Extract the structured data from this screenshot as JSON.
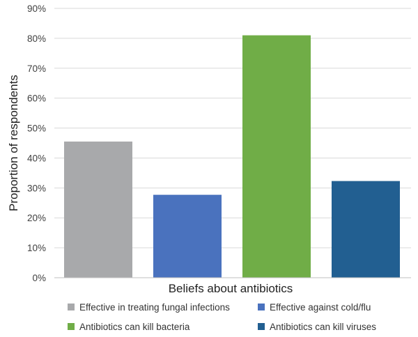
{
  "chart_data": {
    "type": "bar",
    "title": "",
    "xlabel": "Beliefs about antibiotics",
    "ylabel": "Proportion of respondents",
    "ylim": [
      0,
      90
    ],
    "yticks": [
      "0%",
      "10%",
      "20%",
      "30%",
      "40%",
      "50%",
      "60%",
      "70%",
      "80%",
      "90%"
    ],
    "grid": true,
    "legend_position": "bottom",
    "series": [
      {
        "name": "Effective in treating fungal infections",
        "value": 45.5,
        "color": "#a8a9ab"
      },
      {
        "name": "Effective against cold/flu",
        "value": 27.7,
        "color": "#4a72be"
      },
      {
        "name": "Antibiotics can kill bacteria",
        "value": 81,
        "color": "#70ad47"
      },
      {
        "name": "Antibiotics can kill viruses",
        "value": 32.3,
        "color": "#225f91"
      }
    ]
  }
}
